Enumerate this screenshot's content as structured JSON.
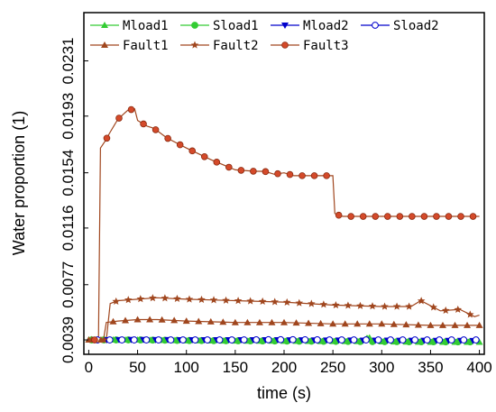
{
  "chart_data": {
    "type": "line",
    "title": "",
    "xlabel": "time (s)",
    "ylabel": "Water proportion (1)",
    "xlim": [
      -5,
      405
    ],
    "ylim": [
      0.00291,
      0.02642
    ],
    "x_ticks": [
      0,
      50,
      100,
      150,
      200,
      250,
      300,
      350,
      400
    ],
    "x_tick_labels": [
      "0",
      "50",
      "100",
      "150",
      "200",
      "250",
      "300",
      "350",
      "400"
    ],
    "y_ticks": [
      0.0039,
      0.0077,
      0.0116,
      0.0154,
      0.0193,
      0.0231
    ],
    "y_tick_labels": [
      "0.0039",
      "0.0077",
      "0.0116",
      "0.0154",
      "0.0193",
      "0.0231"
    ],
    "grid": false,
    "legend_position": "top",
    "series": [
      {
        "name": "Mload1",
        "color": "#33cc33",
        "marker": "triangle-up",
        "x": [
          0,
          20,
          50,
          100,
          150,
          200,
          250,
          280,
          285,
          290,
          300,
          350,
          400
        ],
        "y": [
          0.0039,
          0.0039,
          0.0039,
          0.00385,
          0.00383,
          0.00382,
          0.0038,
          0.0038,
          0.0042,
          0.0039,
          0.00378,
          0.00375,
          0.00375
        ]
      },
      {
        "name": "Sload1",
        "color": "#33cc33",
        "marker": "circle",
        "x": [
          0,
          20,
          50,
          100,
          150,
          200,
          250,
          300,
          350,
          400
        ],
        "y": [
          0.0039,
          0.0039,
          0.0039,
          0.00386,
          0.00384,
          0.00382,
          0.0038,
          0.00378,
          0.00377,
          0.00376
        ]
      },
      {
        "name": "Mload2",
        "color": "#0000cc",
        "marker": "triangle-down",
        "x": [
          0,
          20,
          50,
          100,
          150,
          200,
          250,
          300,
          350,
          400
        ],
        "y": [
          0.0039,
          0.0039,
          0.00392,
          0.0039,
          0.0039,
          0.0039,
          0.00388,
          0.00387,
          0.00386,
          0.00385
        ]
      },
      {
        "name": "Sload2",
        "color": "#0000cc",
        "marker": "circle-open",
        "x": [
          0,
          20,
          50,
          100,
          150,
          200,
          250,
          300,
          350,
          400
        ],
        "y": [
          0.0039,
          0.0039,
          0.0039,
          0.0039,
          0.0039,
          0.00392,
          0.0039,
          0.0039,
          0.0039,
          0.0039
        ]
      },
      {
        "name": "Fault1",
        "color": "#a0461e",
        "marker": "triangle-up",
        "x": [
          0,
          15,
          18,
          30,
          50,
          70,
          100,
          150,
          200,
          250,
          300,
          350,
          400
        ],
        "y": [
          0.0039,
          0.0039,
          0.0051,
          0.0052,
          0.0053,
          0.0053,
          0.0052,
          0.0051,
          0.0051,
          0.005,
          0.005,
          0.0049,
          0.0049
        ]
      },
      {
        "name": "Fault2",
        "color": "#a0461e",
        "marker": "star",
        "x": [
          0,
          18,
          22,
          30,
          50,
          70,
          100,
          150,
          200,
          250,
          300,
          330,
          340,
          360,
          380,
          395,
          400
        ],
        "y": [
          0.0039,
          0.0039,
          0.0064,
          0.0066,
          0.0067,
          0.0068,
          0.0067,
          0.0066,
          0.0065,
          0.0063,
          0.0062,
          0.0062,
          0.0066,
          0.0059,
          0.006,
          0.0055,
          0.0056
        ]
      },
      {
        "name": "Fault3",
        "color": "#a0461e",
        "marker": "circle-filled",
        "x": [
          0,
          10,
          12,
          17,
          22,
          30,
          40,
          47,
          50,
          55,
          60,
          65,
          70,
          80,
          100,
          125,
          150,
          170,
          180,
          190,
          200,
          210,
          220,
          240,
          250,
          252,
          255,
          260,
          275,
          300,
          325,
          350,
          375,
          400
        ],
        "y": [
          0.0039,
          0.0039,
          0.0171,
          0.0176,
          0.0182,
          0.0191,
          0.0197,
          0.0198,
          0.019,
          0.0188,
          0.0186,
          0.0185,
          0.0183,
          0.0178,
          0.0171,
          0.0163,
          0.0156,
          0.0155,
          0.0155,
          0.0153,
          0.0154,
          0.0152,
          0.0152,
          0.0152,
          0.0152,
          0.0126,
          0.0125,
          0.0124,
          0.0124,
          0.0124,
          0.0124,
          0.0124,
          0.0124,
          0.0124
        ]
      }
    ]
  }
}
